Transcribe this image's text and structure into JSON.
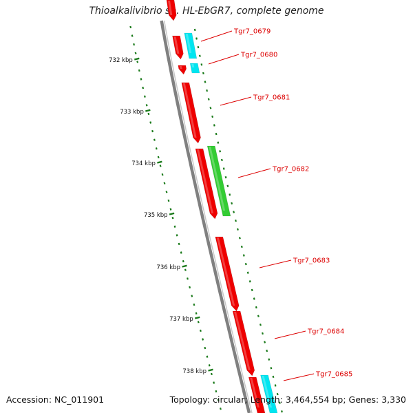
{
  "title": "Thioalkalivibrio sp. HL-EbGR7, complete genome",
  "accession": "Accession: NC_011901",
  "summary": "Topology: circular; Length: 3,464,554 bp; Genes: 3,330",
  "colors": {
    "backbone": "#808080",
    "gene_red": "#ee0000",
    "gene_cyan": "#00e5f0",
    "gene_green": "#33cc33",
    "tick": "#1a7a1a",
    "label": "#dd0000"
  },
  "scale_ticks": [
    "732 kbp",
    "733 kbp",
    "734 kbp",
    "735 kbp",
    "736 kbp",
    "737 kbp",
    "738 kbp"
  ],
  "gene_labels": [
    "Tgr7_0679",
    "Tgr7_0680",
    "Tgr7_0681",
    "Tgr7_0682",
    "Tgr7_0683",
    "Tgr7_0684",
    "Tgr7_0685"
  ]
}
